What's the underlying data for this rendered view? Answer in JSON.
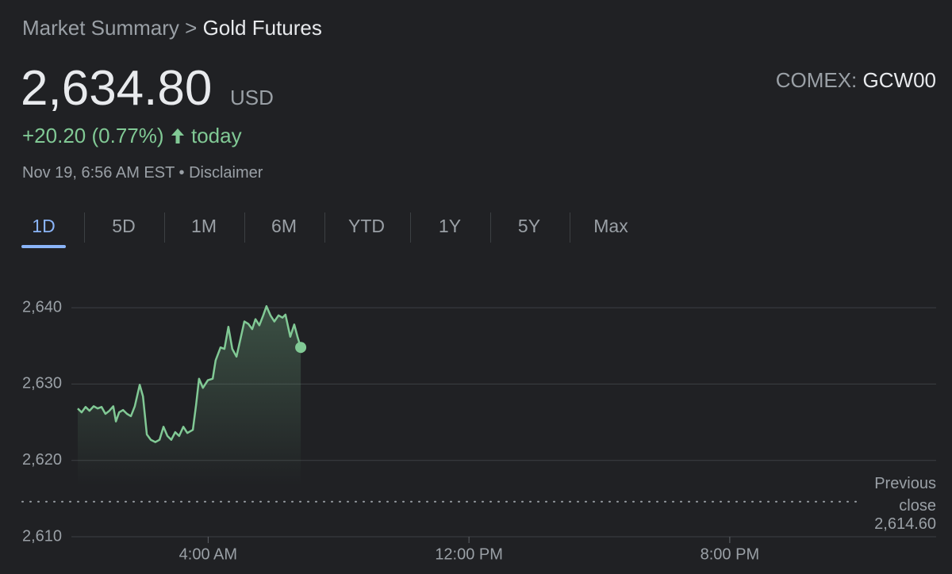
{
  "breadcrumb": {
    "parent": "Market Summary",
    "separator": ">",
    "current": "Gold Futures"
  },
  "quote": {
    "price": "2,634.80",
    "currency": "USD",
    "exchange_label": "COMEX:",
    "symbol": "GCW00",
    "change": "+20.20 (0.77%)",
    "period": "today",
    "timestamp": "Nov 19, 6:56 AM EST",
    "separator": "•",
    "disclaimer": "Disclaimer"
  },
  "tabs": [
    "1D",
    "5D",
    "1M",
    "6M",
    "YTD",
    "1Y",
    "5Y",
    "Max"
  ],
  "selected_tab_index": 0,
  "chart_data": {
    "type": "line",
    "color": "#81c995",
    "grid": true,
    "x": [
      0,
      0.12,
      0.24,
      0.36,
      0.49,
      0.61,
      0.73,
      0.85,
      0.97,
      1.09,
      1.17,
      1.27,
      1.39,
      1.51,
      1.63,
      1.75,
      1.9,
      2.0,
      2.12,
      2.24,
      2.38,
      2.51,
      2.63,
      2.75,
      2.87,
      2.99,
      3.11,
      3.24,
      3.36,
      3.53,
      3.63,
      3.72,
      3.84,
      3.99,
      4.14,
      4.23,
      4.38,
      4.5,
      4.62,
      4.74,
      4.87,
      4.99,
      5.11,
      5.23,
      5.35,
      5.45,
      5.57,
      5.69,
      5.79,
      5.91,
      6.03,
      6.16,
      6.28,
      6.37,
      6.52,
      6.64,
      6.74,
      6.84
    ],
    "values": [
      2626.8,
      2626.3,
      2627.0,
      2626.5,
      2627.1,
      2626.8,
      2627.0,
      2626.1,
      2626.5,
      2627.1,
      2625.1,
      2626.3,
      2626.6,
      2626.1,
      2625.8,
      2627.1,
      2629.9,
      2628.4,
      2623.4,
      2622.7,
      2622.4,
      2622.7,
      2624.4,
      2623.2,
      2622.7,
      2623.7,
      2623.2,
      2624.4,
      2623.6,
      2624.0,
      2627.3,
      2630.7,
      2629.5,
      2630.5,
      2630.7,
      2633.1,
      2634.8,
      2634.6,
      2637.5,
      2634.6,
      2633.6,
      2635.9,
      2638.2,
      2637.9,
      2637.2,
      2638.5,
      2637.7,
      2639.0,
      2640.2,
      2639.0,
      2638.2,
      2639.0,
      2638.7,
      2639.1,
      2636.2,
      2637.8,
      2636.2,
      2634.8
    ],
    "xlim": [
      0,
      26.33
    ],
    "xticks": [
      {
        "value": 4,
        "label": "4:00 AM"
      },
      {
        "value": 12,
        "label": "12:00 PM"
      },
      {
        "value": 20,
        "label": "8:00 PM"
      }
    ],
    "ylim": [
      2610,
      2645
    ],
    "yticks": [
      {
        "value": 2610,
        "label": "2,610"
      },
      {
        "value": 2620,
        "label": "2,620"
      },
      {
        "value": 2630,
        "label": "2,630"
      },
      {
        "value": 2640,
        "label": "2,640"
      }
    ],
    "reference_line": {
      "value": 2614.6,
      "label": "Previous close",
      "value_label": "2,614.60"
    }
  }
}
